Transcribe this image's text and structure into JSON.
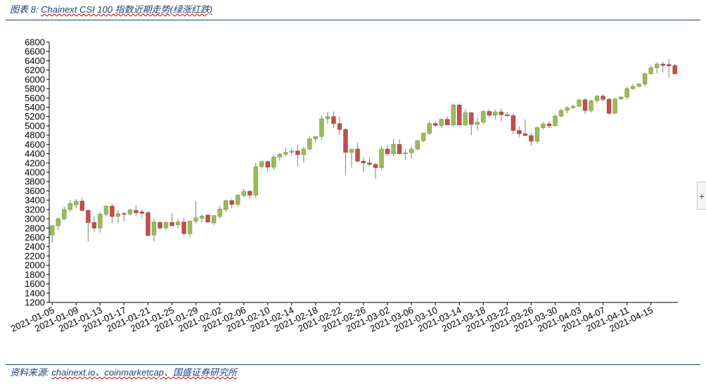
{
  "caption": {
    "prefix": "图表 8:",
    "title": "Chainext CSI 100 指数近期走势(绿涨红跌)"
  },
  "source": {
    "prefix": "资料来源:",
    "text": "chainext.io、coinmarketcap、国盛证券研究所"
  },
  "side_button": {
    "label": "+"
  },
  "colors": {
    "up": "#9bbb59",
    "down": "#c0504d",
    "wick": "#7f7f7f",
    "axis": "#000000"
  },
  "chart_data": {
    "type": "candlestick",
    "title": "",
    "xlabel": "",
    "ylabel": "",
    "ylim": [
      1200,
      6800
    ],
    "yticks": [
      1200,
      1400,
      1600,
      1800,
      2000,
      2200,
      2400,
      2600,
      2800,
      3000,
      3200,
      3400,
      3600,
      3800,
      4000,
      4200,
      4400,
      4600,
      4800,
      5000,
      5200,
      5400,
      5600,
      5800,
      6000,
      6200,
      6400,
      6600,
      6800
    ],
    "xtick_labels": [
      "2021-01-05",
      "2021-01-09",
      "2021-01-13",
      "2021-01-17",
      "2021-01-21",
      "2021-01-25",
      "2021-01-29",
      "2021-02-02",
      "2021-02-06",
      "2021-02-10",
      "2021-02-14",
      "2021-02-18",
      "2021-02-22",
      "2021-02-26",
      "2021-03-02",
      "2021-03-06",
      "2021-03-10",
      "2021-03-14",
      "2021-03-18",
      "2021-03-22",
      "2021-03-26",
      "2021-03-30",
      "2021-04-03",
      "2021-04-07",
      "2021-04-11",
      "2021-04-15"
    ],
    "ohlc_fields": [
      "open",
      "high",
      "low",
      "close"
    ],
    "ohlc": [
      [
        2650,
        2860,
        2480,
        2850
      ],
      [
        2850,
        3030,
        2760,
        3000
      ],
      [
        3000,
        3260,
        2970,
        3200
      ],
      [
        3200,
        3400,
        3140,
        3330
      ],
      [
        3300,
        3420,
        3220,
        3380
      ],
      [
        3380,
        3460,
        3150,
        3180
      ],
      [
        3180,
        3200,
        2520,
        2920
      ],
      [
        2920,
        3050,
        2720,
        2800
      ],
      [
        2800,
        3150,
        2700,
        3100
      ],
      [
        3100,
        3300,
        3050,
        3270
      ],
      [
        3270,
        3320,
        2900,
        3050
      ],
      [
        3050,
        3180,
        2900,
        3110
      ],
      [
        3110,
        3150,
        2950,
        3100
      ],
      [
        3100,
        3220,
        3060,
        3190
      ],
      [
        3180,
        3300,
        3050,
        3130
      ],
      [
        3150,
        3200,
        3020,
        3120
      ],
      [
        3130,
        3160,
        2630,
        2640
      ],
      [
        2650,
        2980,
        2520,
        2930
      ],
      [
        2920,
        2950,
        2770,
        2800
      ],
      [
        2800,
        2950,
        2760,
        2920
      ],
      [
        2920,
        3120,
        2860,
        2850
      ],
      [
        2870,
        3000,
        2800,
        2930
      ],
      [
        2930,
        3020,
        2650,
        2680
      ],
      [
        2680,
        2960,
        2620,
        2950
      ],
      [
        2950,
        3380,
        2900,
        3020
      ],
      [
        3010,
        3090,
        2920,
        3060
      ],
      [
        3080,
        3090,
        2910,
        2930
      ],
      [
        2910,
        3050,
        2870,
        3070
      ],
      [
        3050,
        3280,
        3000,
        3210
      ],
      [
        3200,
        3410,
        3150,
        3390
      ],
      [
        3390,
        3420,
        3230,
        3310
      ],
      [
        3310,
        3520,
        3260,
        3510
      ],
      [
        3500,
        3650,
        3460,
        3590
      ],
      [
        3590,
        3620,
        3420,
        3510
      ],
      [
        3510,
        4200,
        3450,
        4120
      ],
      [
        4120,
        4260,
        4080,
        4230
      ],
      [
        4230,
        4260,
        4010,
        4110
      ],
      [
        4110,
        4380,
        4050,
        4330
      ],
      [
        4330,
        4420,
        4250,
        4390
      ],
      [
        4390,
        4520,
        4350,
        4430
      ],
      [
        4430,
        4520,
        4370,
        4460
      ],
      [
        4460,
        4580,
        4130,
        4380
      ],
      [
        4380,
        4550,
        4210,
        4500
      ],
      [
        4500,
        4770,
        4470,
        4720
      ],
      [
        4720,
        4780,
        4650,
        4770
      ],
      [
        4770,
        5220,
        4700,
        5150
      ],
      [
        5150,
        5300,
        5050,
        5200
      ],
      [
        5200,
        5310,
        4950,
        5050
      ],
      [
        5050,
        5200,
        4800,
        4920
      ],
      [
        4920,
        4950,
        3950,
        4430
      ],
      [
        4430,
        4500,
        4100,
        4500
      ],
      [
        4500,
        4630,
        4210,
        4240
      ],
      [
        4240,
        4320,
        4000,
        4200
      ],
      [
        4200,
        4310,
        4130,
        4170
      ],
      [
        4170,
        4200,
        3850,
        4100
      ],
      [
        4100,
        4570,
        4050,
        4500
      ],
      [
        4500,
        4600,
        4350,
        4400
      ],
      [
        4400,
        4720,
        4350,
        4600
      ],
      [
        4600,
        4710,
        4440,
        4400
      ],
      [
        4400,
        4500,
        4260,
        4420
      ],
      [
        4420,
        4550,
        4300,
        4500
      ],
      [
        4500,
        4700,
        4470,
        4680
      ],
      [
        4680,
        4850,
        4650,
        4840
      ],
      [
        4840,
        5100,
        4800,
        5050
      ],
      [
        5050,
        5100,
        4980,
        5010
      ],
      [
        5010,
        5170,
        4950,
        5140
      ],
      [
        5140,
        5200,
        5050,
        5020
      ],
      [
        5020,
        5480,
        4990,
        5450
      ],
      [
        5450,
        5480,
        5010,
        5020
      ],
      [
        5020,
        5350,
        4990,
        5280
      ],
      [
        5280,
        5300,
        4800,
        5030
      ],
      [
        5030,
        5180,
        4900,
        5080
      ],
      [
        5080,
        5340,
        5040,
        5310
      ],
      [
        5310,
        5360,
        5180,
        5230
      ],
      [
        5230,
        5350,
        5140,
        5300
      ],
      [
        5300,
        5370,
        5100,
        5240
      ],
      [
        5240,
        5300,
        5180,
        5220
      ],
      [
        5220,
        5260,
        4820,
        4900
      ],
      [
        4900,
        4990,
        4750,
        4830
      ],
      [
        4830,
        5140,
        4780,
        4790
      ],
      [
        4790,
        4850,
        4570,
        4670
      ],
      [
        4670,
        4980,
        4620,
        4960
      ],
      [
        4960,
        5080,
        4920,
        5040
      ],
      [
        5040,
        5100,
        4950,
        5000
      ],
      [
        5000,
        5250,
        4990,
        5210
      ],
      [
        5210,
        5380,
        5190,
        5330
      ],
      [
        5330,
        5420,
        5270,
        5390
      ],
      [
        5390,
        5460,
        5360,
        5420
      ],
      [
        5420,
        5570,
        5400,
        5560
      ],
      [
        5560,
        5600,
        5250,
        5330
      ],
      [
        5330,
        5560,
        5290,
        5540
      ],
      [
        5540,
        5660,
        5490,
        5640
      ],
      [
        5640,
        5680,
        5520,
        5570
      ],
      [
        5570,
        5600,
        5240,
        5270
      ],
      [
        5270,
        5600,
        5250,
        5580
      ],
      [
        5580,
        5640,
        5560,
        5620
      ],
      [
        5620,
        5850,
        5560,
        5800
      ],
      [
        5800,
        5900,
        5780,
        5850
      ],
      [
        5850,
        5920,
        5830,
        5900
      ],
      [
        5900,
        6150,
        5850,
        6120
      ],
      [
        6120,
        6300,
        6100,
        6250
      ],
      [
        6250,
        6370,
        6130,
        6330
      ],
      [
        6330,
        6380,
        6150,
        6300
      ],
      [
        6320,
        6440,
        6040,
        6290
      ],
      [
        6300,
        6330,
        6100,
        6120
      ]
    ]
  }
}
